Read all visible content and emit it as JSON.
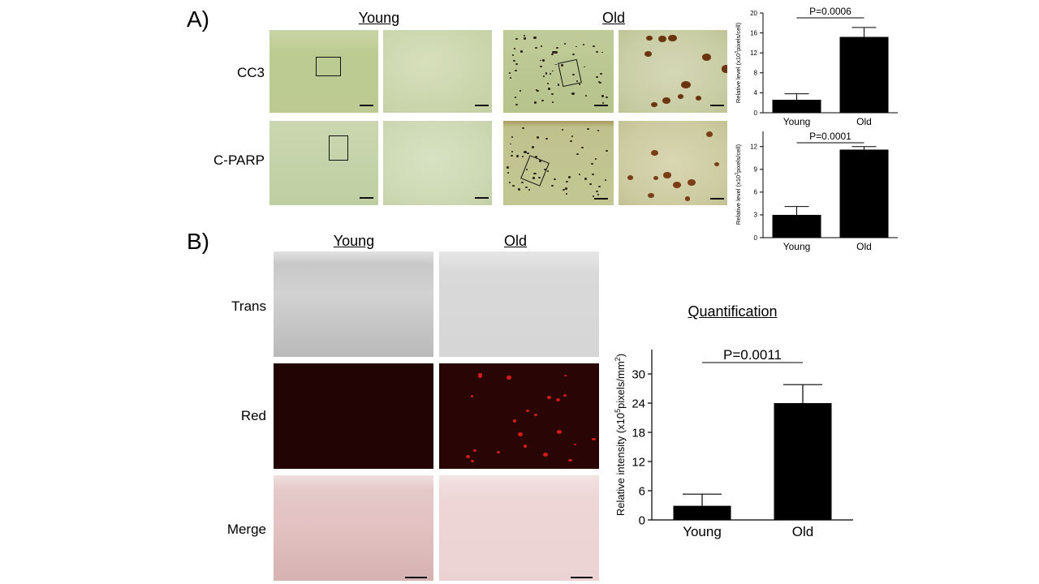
{
  "panel_a": {
    "letter": "A)",
    "col_young": "Young",
    "col_old": "Old",
    "rows": [
      "CC3",
      "C-PARP"
    ]
  },
  "panel_b": {
    "letter": "B)",
    "col_young": "Young",
    "col_old": "Old",
    "rows": [
      "Trans",
      "Red",
      "Merge"
    ]
  },
  "chart_data": [
    {
      "type": "bar",
      "categories": [
        "Young",
        "Old"
      ],
      "values": [
        2.6,
        15.2
      ],
      "errors": [
        1.2,
        1.9
      ],
      "ylabel": "Relative level (x10^3 pixels/cell)",
      "ylabel_base": "Relative level (x10",
      "ylabel_sup": "3",
      "ylabel_tail": "pixels/cell)",
      "ylim": [
        0,
        20
      ],
      "yticks": [
        0,
        4,
        8,
        12,
        16,
        20
      ],
      "annotation": "P=0.0006"
    },
    {
      "type": "bar",
      "categories": [
        "Young",
        "Old"
      ],
      "values": [
        3.0,
        11.6
      ],
      "errors": [
        1.1,
        0.4
      ],
      "ylabel": "Relative level (x10^3 pixels/cell)",
      "ylabel_base": "Relative level (x10",
      "ylabel_sup": "3",
      "ylabel_tail": "pixels/cell)",
      "ylim": [
        0,
        14
      ],
      "yticks": [
        0,
        3,
        6,
        9,
        12
      ],
      "annotation": "P=0.0001"
    },
    {
      "type": "bar",
      "title": "Quantification",
      "categories": [
        "Young",
        "Old"
      ],
      "values": [
        2.9,
        24.0
      ],
      "errors": [
        2.4,
        3.8
      ],
      "ylabel": "Relative intensity (x10^5 pixels/mm^2)",
      "ylabel_base": "Relative intensity (x10",
      "ylabel_sup": "5",
      "ylabel_tail": "pixels/mm",
      "ylabel_sup2": "2",
      "ylabel_end": ")",
      "ylim": [
        0,
        35
      ],
      "yticks": [
        0,
        6,
        12,
        18,
        24,
        30
      ],
      "annotation": "P=0.0011"
    }
  ]
}
